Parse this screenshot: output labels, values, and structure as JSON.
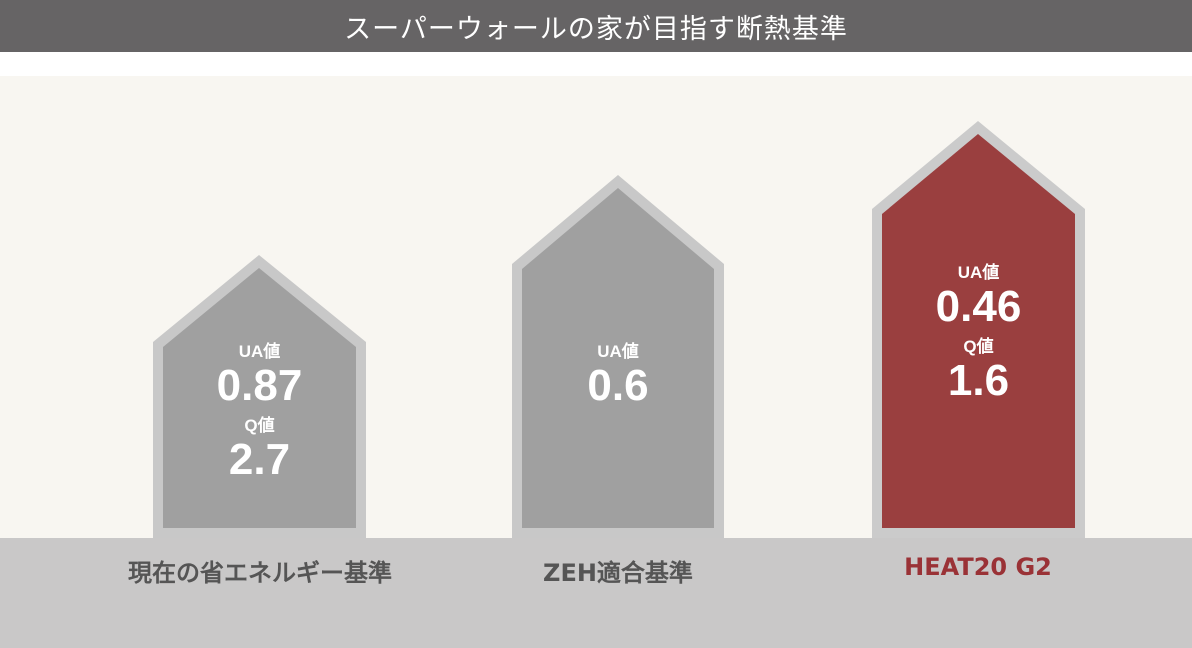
{
  "title": "スーパーウォールの家が目指す断熱基準",
  "colors": {
    "title_bar": "#666465",
    "panel_bg": "#f8f6f1",
    "ground": "#c9c8c8",
    "house_gray_fill": "#a0a0a0",
    "house_gray_border": "#c8c8c8",
    "house_red_fill": "#9a3f3f",
    "house_red_border": "#cbcbcb",
    "caption_gray": "#555555",
    "caption_red": "#9a3236"
  },
  "houses": [
    {
      "caption": "現在の省エネルギー基準",
      "ua_label": "UA値",
      "ua_value": "0.87",
      "q_label": "Q値",
      "q_value": "2.7"
    },
    {
      "caption": "ZEH適合基準",
      "ua_label": "UA値",
      "ua_value": "0.6"
    },
    {
      "caption": "HEAT20 G2",
      "ua_label": "UA値",
      "ua_value": "0.46",
      "q_label": "Q値",
      "q_value": "1.6"
    }
  ]
}
